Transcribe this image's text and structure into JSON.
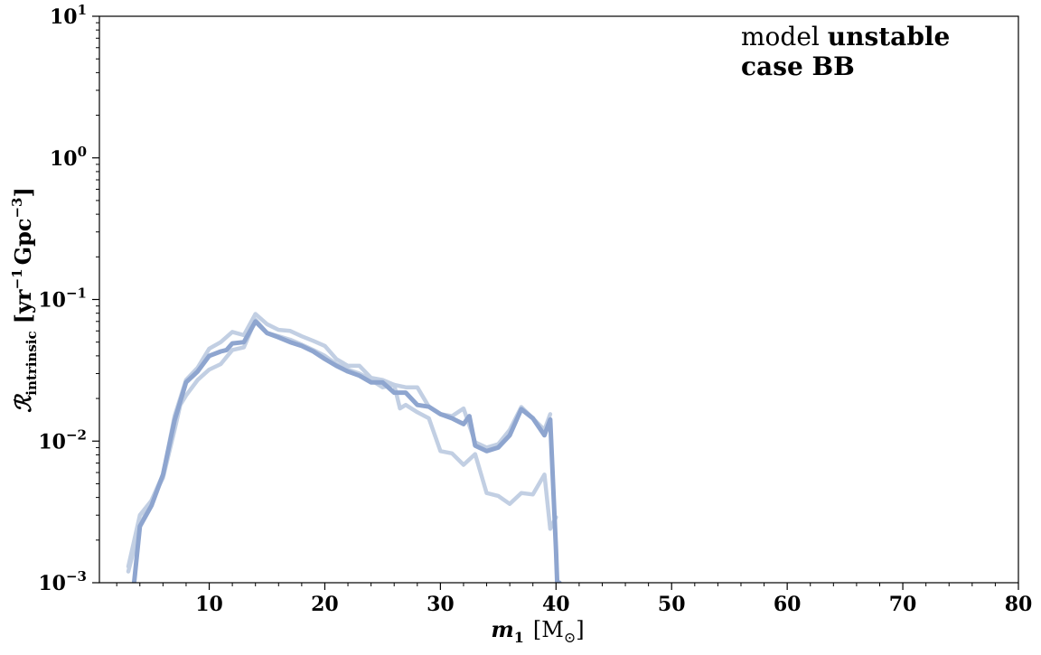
{
  "chart_data": {
    "type": "line",
    "xlabel": "m_1 [M_⊙]",
    "xlabel_parts": {
      "var": "m",
      "sub": "1",
      "unit": "[M",
      "unit_sub": "⊙",
      "unit_close": "]"
    },
    "ylabel_parts": {
      "var": "ℛ",
      "sub": "intrinsic",
      "unit": "[yr",
      "sup1": "−1",
      "unit2": "Gpc",
      "sup2": "−3",
      "close": "]"
    },
    "annotation": {
      "line1_prefix": "model ",
      "line1_bold": "unstable",
      "line2": "case BB"
    },
    "xlim": [
      0.5,
      80
    ],
    "ylim": [
      0.001,
      10
    ],
    "yscale": "log",
    "x_ticks": [
      10,
      20,
      30,
      40,
      50,
      60,
      70,
      80
    ],
    "x_tick_labels": [
      "10",
      "20",
      "30",
      "40",
      "50",
      "60",
      "70",
      "80"
    ],
    "y_ticks": [
      {
        "value": 0.001,
        "base": "10",
        "exp": "−3"
      },
      {
        "value": 0.01,
        "base": "10",
        "exp": "−2"
      },
      {
        "value": 0.1,
        "base": "10",
        "exp": "−1"
      },
      {
        "value": 1,
        "base": "10",
        "exp": "0"
      },
      {
        "value": 10,
        "base": "10",
        "exp": "1"
      }
    ],
    "grid": false,
    "series": [
      {
        "color": "#c2cfe3",
        "width": 4.5,
        "x": [
          3,
          4,
          5,
          6,
          7,
          7.5,
          8,
          9,
          10,
          11,
          12,
          13,
          14,
          15,
          16,
          17,
          18,
          19,
          20,
          21,
          22,
          23,
          24,
          25,
          26,
          26.5,
          27,
          28,
          29,
          30,
          31,
          32,
          33,
          34,
          35,
          36,
          37,
          38,
          39,
          39.5,
          40
        ],
        "y": [
          0.0013,
          0.003,
          0.0038,
          0.0055,
          0.012,
          0.018,
          0.021,
          0.027,
          0.032,
          0.035,
          0.044,
          0.046,
          0.072,
          0.058,
          0.055,
          0.052,
          0.048,
          0.044,
          0.04,
          0.035,
          0.032,
          0.03,
          0.027,
          0.024,
          0.025,
          0.017,
          0.018,
          0.016,
          0.0145,
          0.0085,
          0.0082,
          0.0068,
          0.0081,
          0.0043,
          0.0041,
          0.0036,
          0.0043,
          0.0042,
          0.0058,
          0.0024,
          0.0029
        ]
      },
      {
        "color": "#c2cfe3",
        "width": 4.5,
        "x": [
          3,
          4,
          5,
          6,
          7,
          8,
          9,
          10,
          11,
          12,
          13,
          14,
          15,
          16,
          17,
          18,
          19,
          20,
          21,
          22,
          23,
          24,
          25,
          26,
          27,
          28,
          29,
          30,
          31,
          32,
          33,
          34,
          35,
          36,
          37,
          38,
          39,
          39.5
        ],
        "y": [
          0.0012,
          0.0025,
          0.0038,
          0.0058,
          0.015,
          0.027,
          0.033,
          0.045,
          0.05,
          0.059,
          0.056,
          0.079,
          0.067,
          0.061,
          0.06,
          0.055,
          0.051,
          0.047,
          0.038,
          0.034,
          0.034,
          0.028,
          0.027,
          0.025,
          0.024,
          0.024,
          0.0175,
          0.0155,
          0.015,
          0.017,
          0.0098,
          0.009,
          0.0095,
          0.012,
          0.0174,
          0.0145,
          0.012,
          0.0155
        ]
      },
      {
        "color": "#8ea5cf",
        "width": 5,
        "x": [
          3.5,
          4,
          5,
          6,
          7,
          8,
          9,
          10,
          11,
          11.5,
          12,
          13,
          14,
          15,
          16,
          17,
          18,
          19,
          20,
          21,
          22,
          23,
          24,
          25,
          26,
          27,
          28,
          29,
          30,
          31,
          32,
          32.5,
          33,
          34,
          35,
          36,
          37,
          38,
          39,
          39.5,
          40,
          40.1,
          40.3
        ],
        "y": [
          0.001,
          0.0025,
          0.0035,
          0.0058,
          0.014,
          0.026,
          0.031,
          0.04,
          0.043,
          0.044,
          0.049,
          0.05,
          0.07,
          0.058,
          0.054,
          0.05,
          0.047,
          0.043,
          0.038,
          0.034,
          0.031,
          0.029,
          0.026,
          0.026,
          0.022,
          0.022,
          0.018,
          0.0175,
          0.0155,
          0.0145,
          0.0132,
          0.015,
          0.0093,
          0.0085,
          0.009,
          0.011,
          0.0168,
          0.0145,
          0.011,
          0.0142,
          0.0017,
          0.001,
          0.001
        ]
      }
    ]
  }
}
